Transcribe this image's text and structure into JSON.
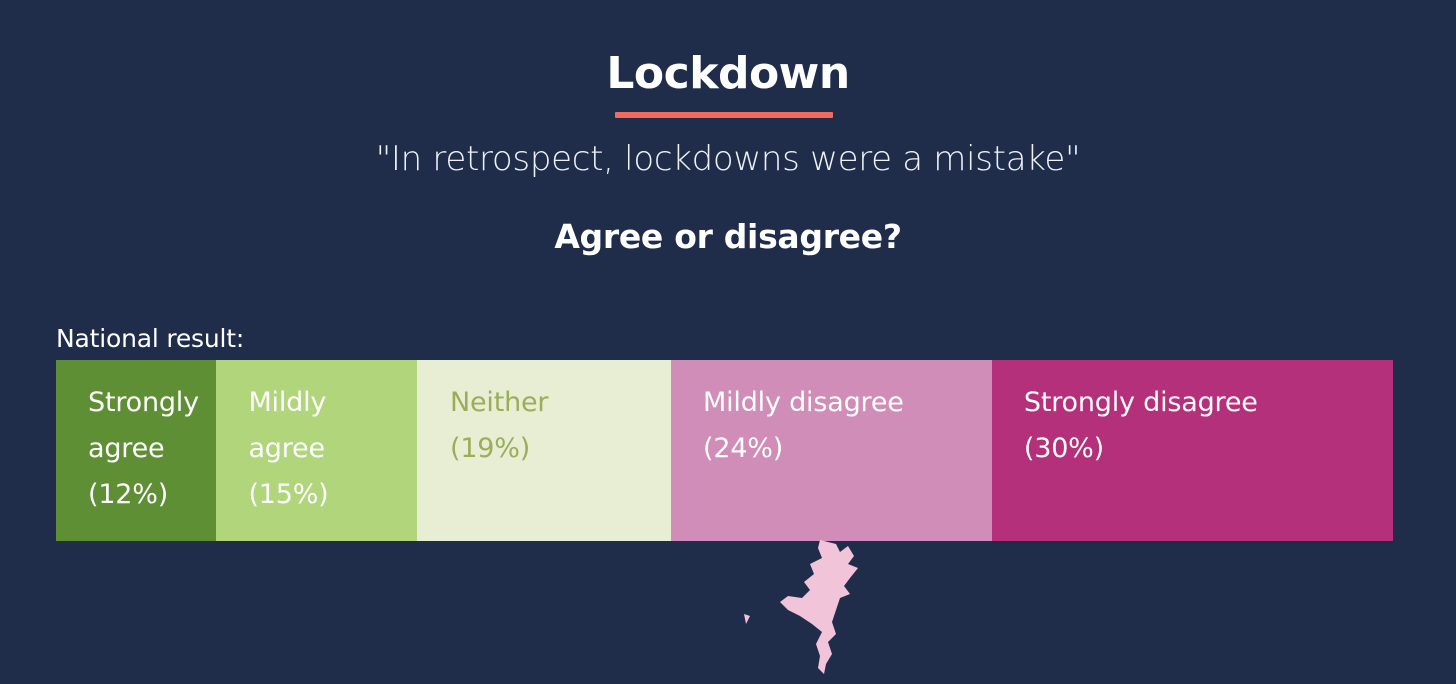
{
  "title": "Lockdown",
  "subtitle": "\"In retrospect, lockdowns were a mistake\"",
  "question": "Agree or disagree?",
  "national_label": "National result:",
  "colors": {
    "background": "#1f2d4b",
    "accent_underline": "#f06a5e",
    "decorative_shape": "#f2c4d9"
  },
  "chart_data": {
    "type": "bar",
    "orientation": "horizontal-stacked",
    "categories": [
      "Strongly agree",
      "Mildly agree",
      "Neither",
      "Mildly disagree",
      "Strongly disagree"
    ],
    "values": [
      12,
      15,
      19,
      24,
      30
    ],
    "labels": [
      "Strongly\nagree\n(12%)",
      "Mildly\nagree\n(15%)",
      "Neither\n(19%)",
      "Mildly disagree\n(24%)",
      "Strongly disagree\n(30%)"
    ],
    "colors": [
      "#5e8f35",
      "#b0d57a",
      "#e8eed3",
      "#cf8db8",
      "#b5307a"
    ],
    "label_colors": [
      "#ffffff",
      "#ffffff",
      "#9aae5a",
      "#ffffff",
      "#ffffff"
    ],
    "legend": "none",
    "grid": false
  }
}
